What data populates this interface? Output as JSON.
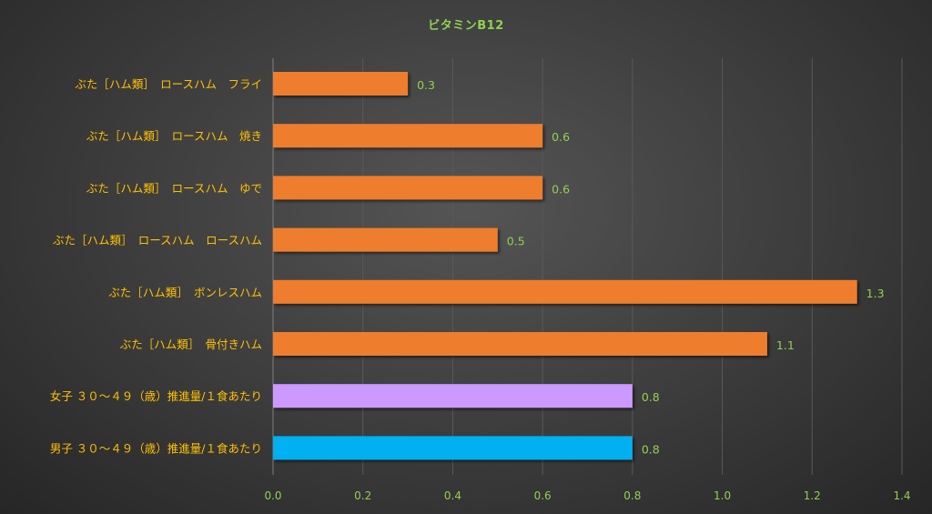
{
  "chart_data": {
    "type": "bar",
    "orientation": "horizontal",
    "title": "ビタミンB12",
    "xlabel": "",
    "ylabel": "",
    "categories": [
      "ぶた［ハム類］　ロースハム　フライ",
      "ぶた［ハム類］　ロースハム　焼き",
      "ぶた［ハム類］　ロースハム　ゆで",
      "ぶた［ハム類］　ロースハム　ロースハム",
      "ぶた［ハム類］　ボンレスハム",
      "ぶた［ハム類］　骨付きハム",
      "女子 ３０～４９（歳）推進量/１食あたり",
      "男子 ３０～４９（歳）推進量/１食あたり"
    ],
    "values": [
      0.3,
      0.6,
      0.6,
      0.5,
      1.3,
      1.1,
      0.8,
      0.8
    ],
    "value_labels": [
      "0.3",
      "0.6",
      "0.6",
      "0.5",
      "1.3",
      "1.1",
      "0.8",
      "0.8"
    ],
    "bar_colors": [
      "#ee7d2f",
      "#ee7d2f",
      "#ee7d2f",
      "#ee7d2f",
      "#ee7d2f",
      "#ee7d2f",
      "#cc99ff",
      "#00b0f0"
    ],
    "xlim": [
      0,
      1.4
    ],
    "xticks": [
      0.0,
      0.2,
      0.4,
      0.6,
      0.8,
      1.0,
      1.2,
      1.4
    ],
    "xtick_labels": [
      "0.0",
      "0.2",
      "0.4",
      "0.6",
      "0.8",
      "1.0",
      "1.2",
      "1.4"
    ],
    "grid": "vertical",
    "legend": "none",
    "colors": {
      "title": "#92d050",
      "category_label": "#ffc000",
      "tick_label": "#92d050",
      "value_label": "#92d050",
      "gridline": "#595959"
    }
  }
}
